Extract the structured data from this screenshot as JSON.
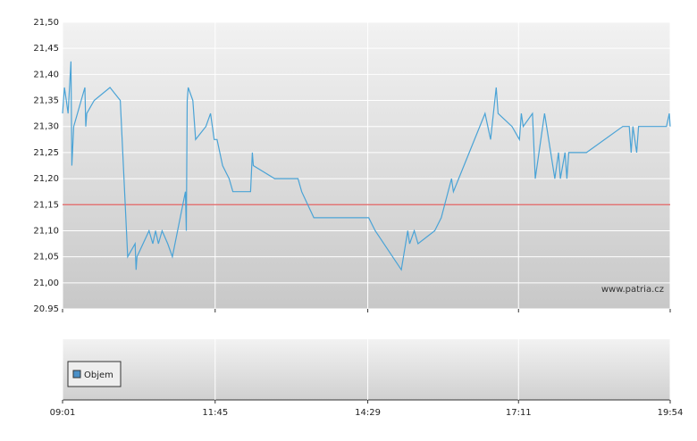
{
  "chart_data": {
    "type": "line",
    "x": [
      "09:01",
      "09:03",
      "09:05",
      "09:07",
      "09:10",
      "09:11",
      "09:13",
      "09:25",
      "09:26",
      "09:27",
      "09:35",
      "09:52",
      "10:03",
      "10:11",
      "10:19",
      "10:20",
      "10:21",
      "10:34",
      "10:38",
      "10:41",
      "10:44",
      "10:48",
      "10:54",
      "10:59",
      "11:13",
      "11:14",
      "11:15",
      "11:16",
      "11:21",
      "11:24",
      "11:35",
      "11:40",
      "11:44",
      "11:47",
      "11:53",
      "12:00",
      "12:04",
      "12:23",
      "12:25",
      "12:26",
      "12:49",
      "13:14",
      "13:18",
      "13:31",
      "14:30",
      "14:37",
      "15:05",
      "15:12",
      "15:14",
      "15:19",
      "15:23",
      "15:41",
      "15:48",
      "15:59",
      "16:01",
      "16:35",
      "16:41",
      "16:47",
      "16:49",
      "17:04",
      "17:12",
      "17:14",
      "17:16",
      "17:26",
      "17:29",
      "17:39",
      "17:50",
      "17:54",
      "17:56",
      "18:01",
      "18:03",
      "18:05",
      "18:08",
      "18:24",
      "19:03",
      "19:10",
      "19:12",
      "19:14",
      "19:18",
      "19:20",
      "19:50",
      "19:53",
      "19:54"
    ],
    "values": [
      21.325,
      21.375,
      21.35,
      21.325,
      21.425,
      21.225,
      21.3,
      21.375,
      21.3,
      21.325,
      21.35,
      21.375,
      21.35,
      21.05,
      21.075,
      21.025,
      21.05,
      21.1,
      21.075,
      21.1,
      21.075,
      21.1,
      21.075,
      21.05,
      21.175,
      21.1,
      21.35,
      21.375,
      21.35,
      21.275,
      21.3,
      21.325,
      21.275,
      21.275,
      21.225,
      21.2,
      21.175,
      21.175,
      21.25,
      21.225,
      21.2,
      21.2,
      21.175,
      21.125,
      21.125,
      21.1,
      21.025,
      21.1,
      21.075,
      21.1,
      21.075,
      21.1,
      21.125,
      21.2,
      21.175,
      21.325,
      21.275,
      21.375,
      21.325,
      21.3,
      21.275,
      21.325,
      21.3,
      21.325,
      21.2,
      21.325,
      21.2,
      21.25,
      21.2,
      21.25,
      21.2,
      21.25,
      21.25,
      21.25,
      21.3,
      21.3,
      21.25,
      21.3,
      21.25,
      21.3,
      21.3,
      21.325,
      21.3
    ],
    "color": "#4aa3d6",
    "reference_line": 21.15,
    "reference_color": "#e06060",
    "xlim": [
      "09:01",
      "19:54"
    ],
    "xticks": [
      "09:01",
      "11:45",
      "14:29",
      "17:11",
      "19:54"
    ],
    "ylim": [
      20.95,
      21.5
    ],
    "yticks": [
      {
        "value": 20.95,
        "label": "20.95"
      },
      {
        "value": 21.0,
        "label": "21,00"
      },
      {
        "value": 21.05,
        "label": "21,05"
      },
      {
        "value": 21.1,
        "label": "21,10"
      },
      {
        "value": 21.15,
        "label": "21,15"
      },
      {
        "value": 21.2,
        "label": "21,20"
      },
      {
        "value": 21.25,
        "label": "21,25"
      },
      {
        "value": 21.3,
        "label": "21,30"
      },
      {
        "value": 21.35,
        "label": "21,35"
      },
      {
        "value": 21.4,
        "label": "21,40"
      },
      {
        "value": 21.45,
        "label": "21,45"
      },
      {
        "value": 21.5,
        "label": "21,50"
      }
    ],
    "grid": true,
    "watermark": "www.patria.cz",
    "volume_legend": "Objem",
    "volume_color": "#4a90c8"
  }
}
